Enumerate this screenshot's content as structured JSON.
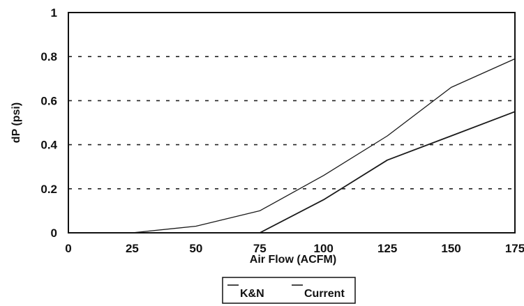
{
  "chart_data": {
    "type": "line",
    "title": "",
    "xlabel": "Air Flow (ACFM)",
    "ylabel": "dP (psi)",
    "xlim": [
      0,
      175
    ],
    "ylim": [
      0,
      1
    ],
    "x_ticks": [
      "0",
      "25",
      "50",
      "75",
      "100",
      "125",
      "150",
      "175"
    ],
    "y_ticks": [
      "0",
      "0.2",
      "0.4",
      "0.6",
      "0.8",
      "1"
    ],
    "grid": "horizontal dashed",
    "legend_position": "bottom",
    "series": [
      {
        "name": "K&N",
        "color": "#1a1a1a",
        "points": [
          [
            0,
            0
          ],
          [
            25,
            0
          ],
          [
            50,
            0.03
          ],
          [
            75,
            0.1
          ],
          [
            100,
            0.26
          ],
          [
            125,
            0.44
          ],
          [
            150,
            0.66
          ],
          [
            175,
            0.79
          ]
        ]
      },
      {
        "name": "Current",
        "color": "#1a1a1a",
        "points": [
          [
            0,
            0
          ],
          [
            75,
            0
          ],
          [
            100,
            0.15
          ],
          [
            125,
            0.33
          ],
          [
            150,
            0.44
          ],
          [
            175,
            0.55
          ]
        ]
      }
    ]
  }
}
